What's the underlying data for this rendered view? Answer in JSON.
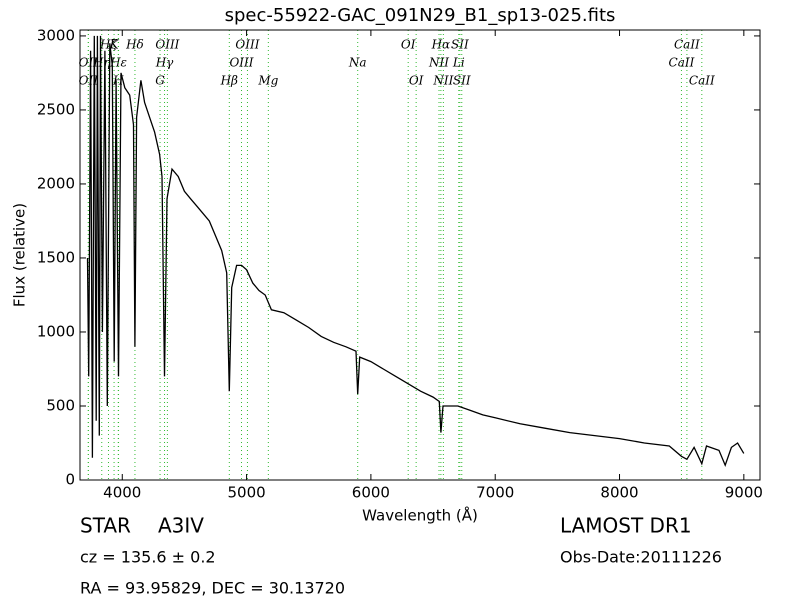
{
  "chart_data": {
    "type": "line",
    "title": "spec-55922-GAC_091N29_B1_sp13-025.fits",
    "xlabel": "Wavelength (Å)",
    "ylabel": "Flux (relative)",
    "xlim": [
      3660,
      9130
    ],
    "ylim": [
      0,
      3040
    ],
    "xticks": [
      4000,
      5000,
      6000,
      7000,
      8000,
      9000
    ],
    "yticks": [
      0,
      500,
      1000,
      1500,
      2000,
      2500,
      3000
    ],
    "color": "#000000",
    "line_color": "#33bb33",
    "x": [
      3720,
      3730,
      3745,
      3760,
      3775,
      3790,
      3800,
      3815,
      3825,
      3840,
      3860,
      3880,
      3900,
      3920,
      3935,
      3950,
      3970,
      3990,
      4020,
      4060,
      4090,
      4102,
      4115,
      4150,
      4180,
      4220,
      4260,
      4300,
      4320,
      4340,
      4360,
      4400,
      4450,
      4500,
      4550,
      4600,
      4650,
      4700,
      4750,
      4800,
      4840,
      4861,
      4880,
      4920,
      4960,
      5000,
      5050,
      5100,
      5150,
      5200,
      5300,
      5400,
      5500,
      5600,
      5700,
      5800,
      5880,
      5894,
      5910,
      6000,
      6100,
      6200,
      6300,
      6400,
      6500,
      6550,
      6563,
      6580,
      6700,
      6800,
      6900,
      7000,
      7200,
      7400,
      7600,
      7800,
      8000,
      8200,
      8400,
      8498,
      8542,
      8600,
      8662,
      8700,
      8800,
      8850,
      8900,
      8950,
      9000
    ],
    "values": [
      1500,
      700,
      2900,
      150,
      3000,
      400,
      3000,
      300,
      3000,
      1000,
      2900,
      500,
      2950,
      2800,
      800,
      2700,
      700,
      2750,
      2650,
      2600,
      2400,
      900,
      2450,
      2700,
      2550,
      2450,
      2350,
      2200,
      2050,
      700,
      1900,
      2100,
      2050,
      1950,
      1900,
      1850,
      1800,
      1750,
      1650,
      1550,
      1400,
      600,
      1300,
      1450,
      1450,
      1420,
      1330,
      1280,
      1250,
      1150,
      1130,
      1080,
      1030,
      970,
      930,
      900,
      870,
      580,
      830,
      800,
      750,
      700,
      650,
      600,
      560,
      530,
      320,
      500,
      500,
      470,
      440,
      420,
      380,
      350,
      320,
      300,
      280,
      250,
      230,
      160,
      140,
      220,
      110,
      230,
      200,
      100,
      220,
      250,
      180
    ],
    "lines": [
      [
        {
          "label": "Hζ",
          "x": 3889
        },
        {
          "label": "K",
          "x": 3934
        },
        {
          "label": "Hδ",
          "x": 4102
        },
        {
          "label": "OIII",
          "x": 4363
        },
        {
          "label": "OIII",
          "x": 5007
        },
        {
          "label": "OI",
          "x": 6300
        },
        {
          "label": "Hα",
          "x": 6563
        },
        {
          "label": "SII",
          "x": 6716
        },
        {
          "label": "CaII",
          "x": 8542
        }
      ],
      [
        {
          "label": "OII",
          "x": 3727
        },
        {
          "label": "Hη",
          "x": 3835
        },
        {
          "label": "Hε",
          "x": 3970
        },
        {
          "label": "Hγ",
          "x": 4340
        },
        {
          "label": "OIII",
          "x": 4959
        },
        {
          "label": "Na",
          "x": 5894
        },
        {
          "label": "NII",
          "x": 6548
        },
        {
          "label": "Li",
          "x": 6707
        },
        {
          "label": "CaII",
          "x": 8498
        }
      ],
      [
        {
          "label": "OII",
          "x": 3727
        },
        {
          "label": "H",
          "x": 3968
        },
        {
          "label": "G",
          "x": 4304
        },
        {
          "label": "Hβ",
          "x": 4861
        },
        {
          "label": "Mg",
          "x": 5175
        },
        {
          "label": "OI",
          "x": 6364
        },
        {
          "label": "NII",
          "x": 6583
        },
        {
          "label": "SII",
          "x": 6731
        },
        {
          "label": "CaII",
          "x": 8662
        }
      ]
    ],
    "object_class": "STAR",
    "subclass": "A3IV",
    "cz": "cz = 135.6 ± 0.2",
    "coords": "RA = 93.95829, DEC = 30.13720",
    "survey": "LAMOST DR1",
    "obs_date": "Obs-Date:20111226"
  }
}
